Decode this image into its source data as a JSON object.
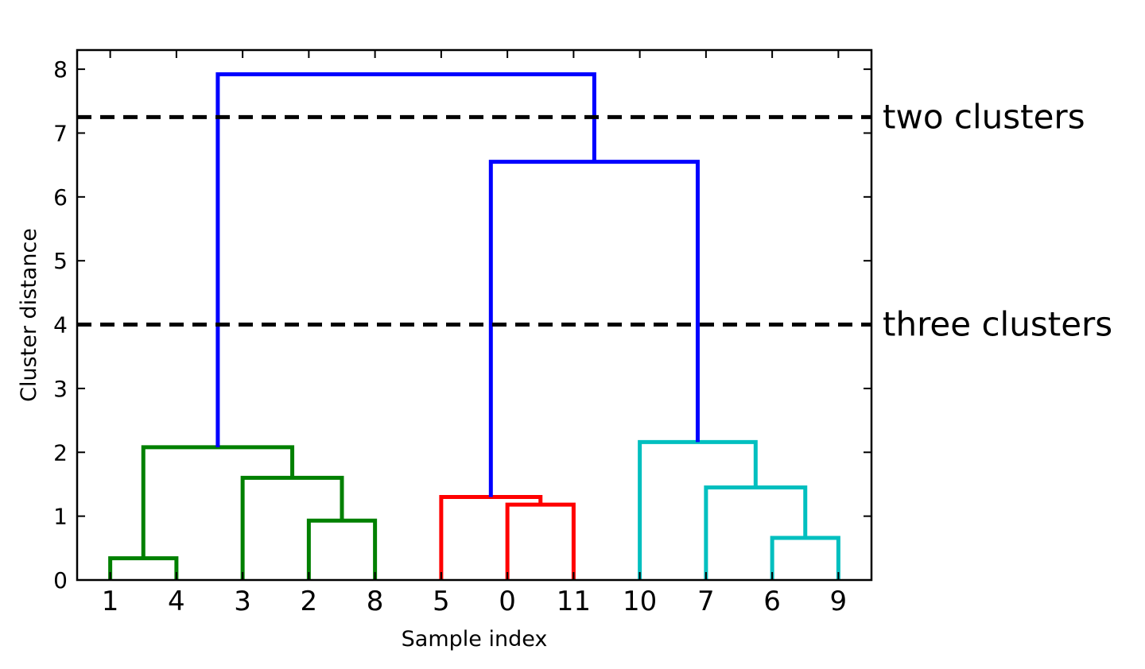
{
  "chart_data": {
    "type": "dendrogram",
    "xlabel": "Sample index",
    "ylabel": "Cluster distance",
    "ylim": [
      0,
      8.3
    ],
    "y_ticks": [
      0,
      1,
      2,
      3,
      4,
      5,
      6,
      7,
      8
    ],
    "leaf_order": [
      "1",
      "4",
      "3",
      "2",
      "8",
      "5",
      "0",
      "11",
      "10",
      "7",
      "6",
      "9"
    ],
    "colors": {
      "green": "#008000",
      "red": "#ff0000",
      "cyan": "#00bfbf",
      "blue": "#0000ff",
      "cut": "#000000"
    },
    "links": [
      {
        "id": "g1",
        "color": "green",
        "left": "1",
        "right": "4",
        "height": 0.34
      },
      {
        "id": "g2",
        "color": "green",
        "left": "2",
        "right": "8",
        "height": 0.93
      },
      {
        "id": "g3",
        "color": "green",
        "left": "3",
        "right": "g2",
        "height": 1.6
      },
      {
        "id": "g4",
        "color": "green",
        "left": "g1",
        "right": "g3",
        "height": 2.08
      },
      {
        "id": "r1",
        "color": "red",
        "left": "0",
        "right": "11",
        "height": 1.18
      },
      {
        "id": "r2",
        "color": "red",
        "left": "5",
        "right": "r1",
        "height": 1.3
      },
      {
        "id": "c1",
        "color": "cyan",
        "left": "6",
        "right": "9",
        "height": 0.66
      },
      {
        "id": "c2",
        "color": "cyan",
        "left": "7",
        "right": "c1",
        "height": 1.45
      },
      {
        "id": "c3",
        "color": "cyan",
        "left": "10",
        "right": "c2",
        "height": 2.16
      },
      {
        "id": "b1",
        "color": "blue",
        "left": "r2",
        "right": "c3",
        "height": 6.55
      },
      {
        "id": "b2",
        "color": "blue",
        "left": "g4",
        "right": "b1",
        "height": 7.92
      }
    ],
    "cut_lines": [
      {
        "y": 7.25,
        "label": "two clusters"
      },
      {
        "y": 4.0,
        "label": "three clusters"
      }
    ]
  }
}
